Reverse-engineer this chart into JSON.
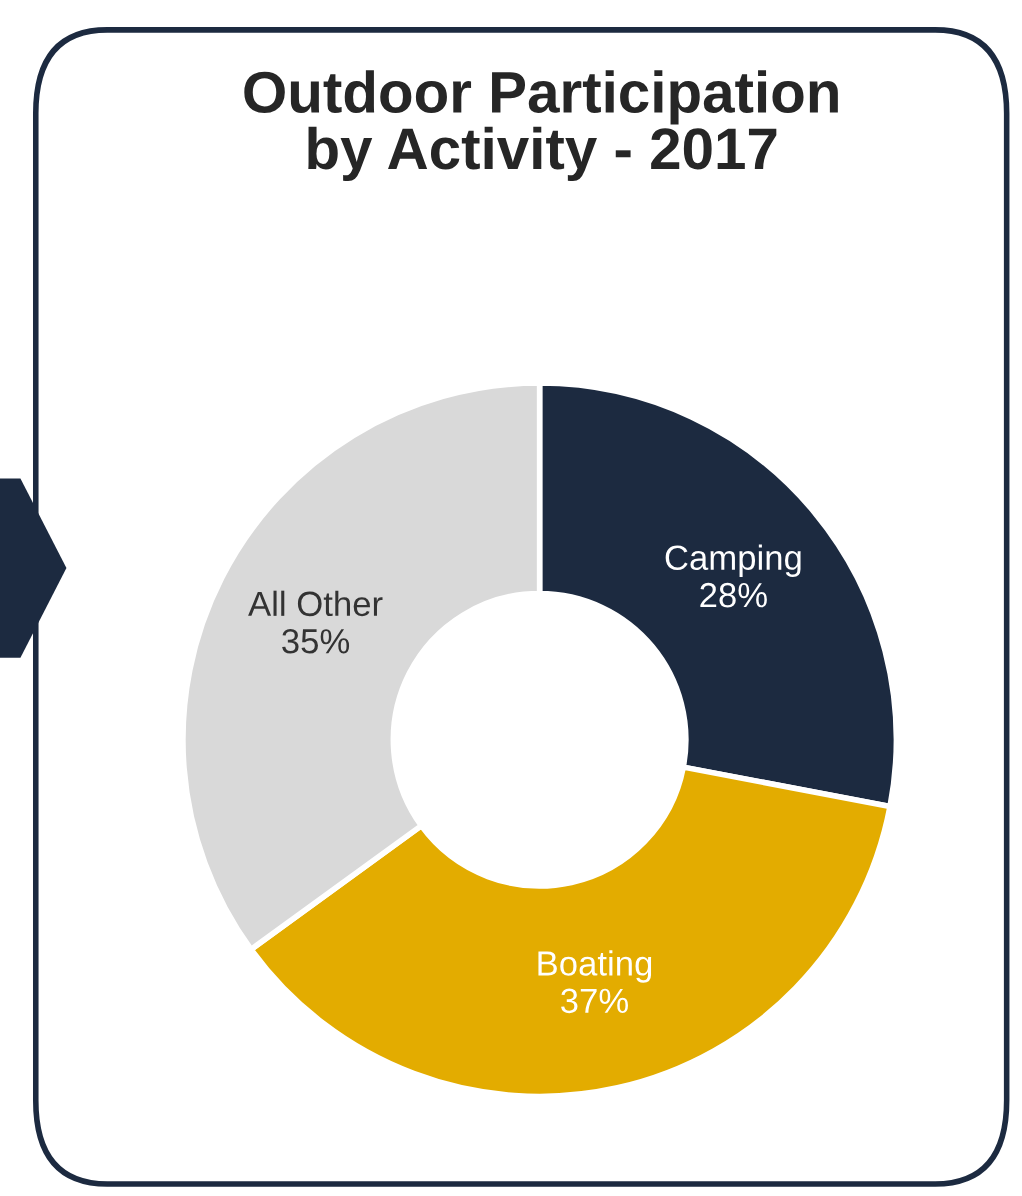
{
  "chart_data": {
    "type": "donut",
    "title": "Outdoor Participation\nby Activity - 2017",
    "categories": [
      "Camping",
      "Boating",
      "All Other"
    ],
    "values": [
      28,
      37,
      35
    ],
    "value_labels": [
      "28%",
      "37%",
      "35%"
    ],
    "colors": [
      "#1c2a40",
      "#e3ac00",
      "#d9d9d9"
    ],
    "legend": false
  }
}
